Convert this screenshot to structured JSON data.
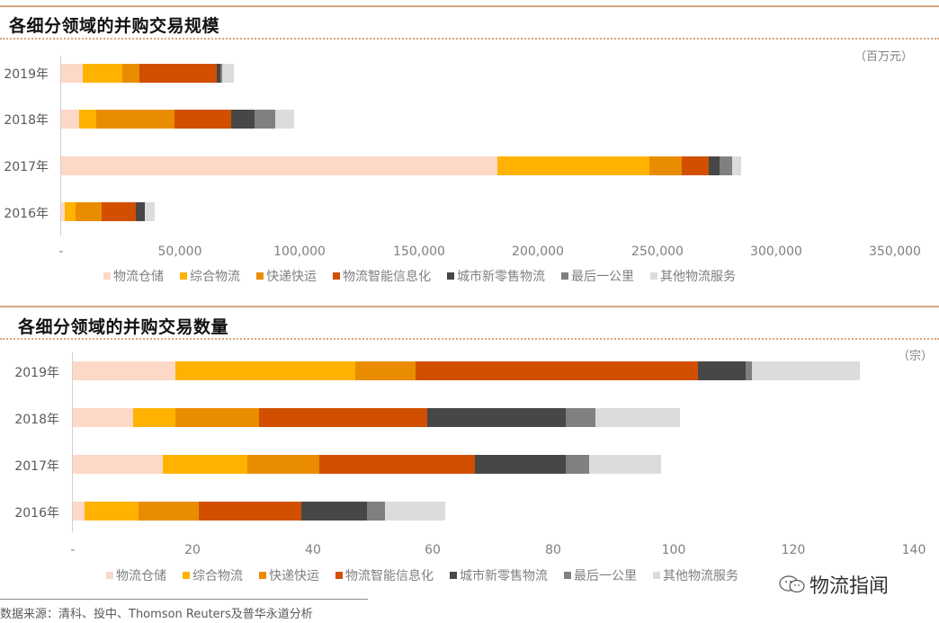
{
  "colors": {
    "物流仓储": "#fdd8c6",
    "综合物流": "#ffb300",
    "快递快运": "#ea8c00",
    "物流智能信息化": "#d24f00",
    "城市新零售物流": "#474747",
    "最后一公里": "#808080",
    "其他物流服务": "#dcdcdc",
    "rule": "#d9a47a"
  },
  "chart_data": [
    {
      "type": "bar",
      "orientation": "horizontal",
      "stacked": true,
      "title": "各细分领域的并购交易规模",
      "unit": "（百万元）",
      "xlabel": "",
      "ylabel": "",
      "xlim": [
        0,
        350000
      ],
      "x_ticks": [
        "-",
        "50,000",
        "100,000",
        "150,000",
        "200,000",
        "250,000",
        "300,000",
        "350,000"
      ],
      "categories": [
        "2019年",
        "2018年",
        "2017年",
        "2016年"
      ],
      "legend_position": "bottom",
      "grid": false,
      "series": [
        {
          "name": "物流仓储",
          "values": [
            9000,
            7500,
            183000,
            1500
          ]
        },
        {
          "name": "综合物流",
          "values": [
            16500,
            7200,
            64000,
            4500
          ]
        },
        {
          "name": "快递快运",
          "values": [
            7500,
            33000,
            13500,
            11000
          ]
        },
        {
          "name": "物流智能信息化",
          "values": [
            32500,
            23500,
            11500,
            14500
          ]
        },
        {
          "name": "城市新零售物流",
          "values": [
            1500,
            10000,
            4500,
            3800
          ]
        },
        {
          "name": "最后一公里",
          "values": [
            500,
            8500,
            5000,
            0
          ]
        },
        {
          "name": "其他物流服务",
          "values": [
            5000,
            8000,
            4000,
            4000
          ]
        }
      ]
    },
    {
      "type": "bar",
      "orientation": "horizontal",
      "stacked": true,
      "title": "各细分领域的并购交易数量",
      "unit": "（宗）",
      "xlabel": "",
      "ylabel": "",
      "xlim": [
        0,
        140
      ],
      "x_ticks": [
        "-",
        "20",
        "40",
        "60",
        "80",
        "100",
        "120",
        "140"
      ],
      "categories": [
        "2019年",
        "2018年",
        "2017年",
        "2016年"
      ],
      "legend_position": "bottom",
      "grid": false,
      "series": [
        {
          "name": "物流仓储",
          "values": [
            17,
            10,
            15,
            2
          ]
        },
        {
          "name": "综合物流",
          "values": [
            30,
            7,
            14,
            9
          ]
        },
        {
          "name": "快递快运",
          "values": [
            10,
            14,
            12,
            10
          ]
        },
        {
          "name": "物流智能信息化",
          "values": [
            47,
            28,
            26,
            17
          ]
        },
        {
          "name": "城市新零售物流",
          "values": [
            8,
            23,
            15,
            11
          ]
        },
        {
          "name": "最后一公里",
          "values": [
            1,
            5,
            4,
            3
          ]
        },
        {
          "name": "其他物流服务",
          "values": [
            18,
            14,
            12,
            10
          ]
        }
      ]
    }
  ],
  "charts": {
    "value": {
      "title": "各细分领域的并购交易规模",
      "unit": "（百万元）",
      "years": [
        "2019年",
        "2018年",
        "2017年",
        "2016年"
      ],
      "ticks": [
        "-",
        "50,000",
        "100,000",
        "150,000",
        "200,000",
        "250,000",
        "300,000",
        "350,000"
      ]
    },
    "count": {
      "title": "各细分领域的并购交易数量",
      "unit": "（宗）",
      "years": [
        "2019年",
        "2018年",
        "2017年",
        "2016年"
      ],
      "ticks": [
        "-",
        "20",
        "40",
        "60",
        "80",
        "100",
        "120",
        "140"
      ]
    }
  },
  "legend": [
    "物流仓储",
    "综合物流",
    "快递快运",
    "物流智能信息化",
    "城市新零售物流",
    "最后一公里",
    "其他物流服务"
  ],
  "footer": {
    "source": "数据来源：清科、投中、Thomson Reuters及普华永道分析",
    "watermark": "物流指闻"
  }
}
